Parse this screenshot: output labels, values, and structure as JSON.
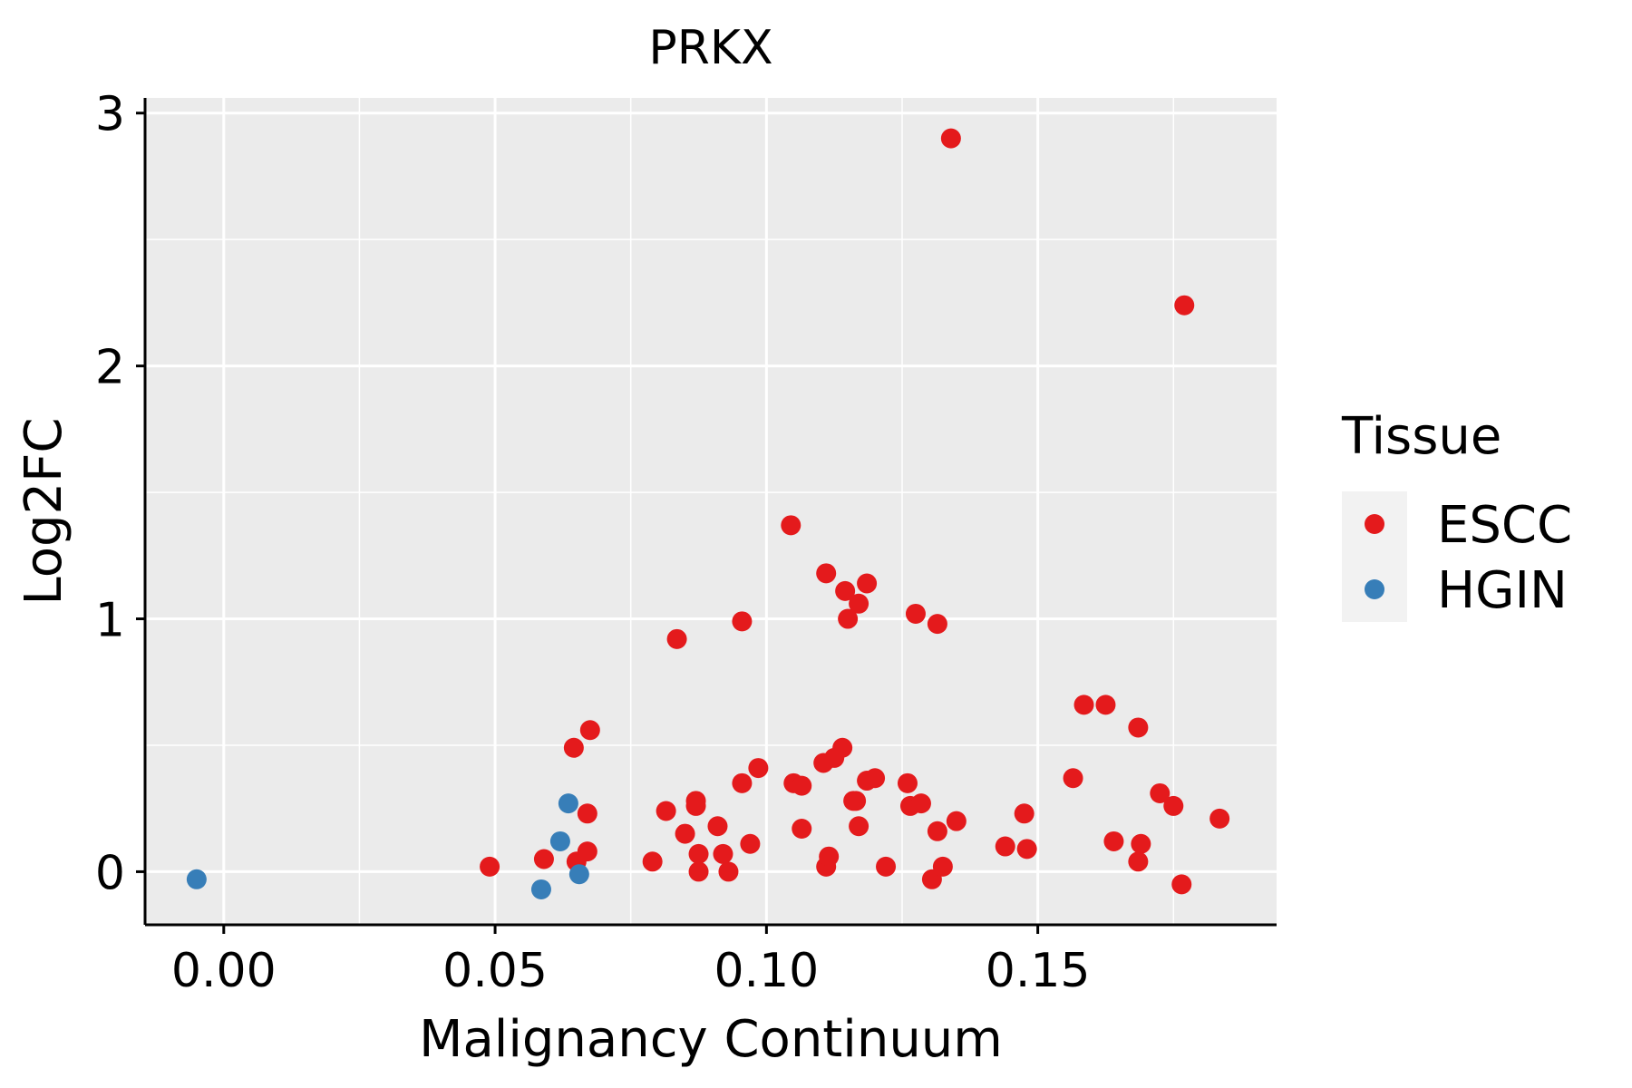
{
  "chart_data": {
    "type": "scatter",
    "title": "PRKX",
    "xlabel": "Malignancy Continuum",
    "ylabel": "Log2FC",
    "xlim": [
      -0.0145,
      0.194
    ],
    "ylim": [
      -0.21,
      3.06
    ],
    "x_ticks": [
      0.0,
      0.05,
      0.1,
      0.15
    ],
    "x_tick_labels": [
      "0.00",
      "0.05",
      "0.10",
      "0.15"
    ],
    "y_ticks": [
      0,
      1,
      2,
      3
    ],
    "y_tick_labels": [
      "0",
      "1",
      "2",
      "3"
    ],
    "grid": true,
    "legend": {
      "title": "Tissue",
      "position": "right"
    },
    "series": [
      {
        "name": "ESCC",
        "color": "#E41A1C",
        "points": [
          [
            0.049,
            0.02
          ],
          [
            0.059,
            0.05
          ],
          [
            0.065,
            0.04
          ],
          [
            0.067,
            0.08
          ],
          [
            0.067,
            0.23
          ],
          [
            0.0645,
            0.49
          ],
          [
            0.0675,
            0.56
          ],
          [
            0.079,
            0.04
          ],
          [
            0.0815,
            0.24
          ],
          [
            0.0835,
            0.92
          ],
          [
            0.085,
            0.15
          ],
          [
            0.087,
            0.28
          ],
          [
            0.087,
            0.26
          ],
          [
            0.0875,
            0.07
          ],
          [
            0.0875,
            0.0
          ],
          [
            0.091,
            0.18
          ],
          [
            0.092,
            0.07
          ],
          [
            0.093,
            0.0
          ],
          [
            0.0955,
            0.35
          ],
          [
            0.0955,
            0.99
          ],
          [
            0.097,
            0.11
          ],
          [
            0.0985,
            0.41
          ],
          [
            0.1045,
            1.37
          ],
          [
            0.105,
            0.35
          ],
          [
            0.1065,
            0.34
          ],
          [
            0.1065,
            0.17
          ],
          [
            0.1105,
            0.43
          ],
          [
            0.111,
            0.02
          ],
          [
            0.1115,
            0.06
          ],
          [
            0.111,
            1.18
          ],
          [
            0.1125,
            0.45
          ],
          [
            0.114,
            0.49
          ],
          [
            0.1145,
            1.11
          ],
          [
            0.115,
            1.0
          ],
          [
            0.116,
            0.28
          ],
          [
            0.1165,
            0.28
          ],
          [
            0.117,
            1.06
          ],
          [
            0.117,
            0.18
          ],
          [
            0.1185,
            0.36
          ],
          [
            0.1185,
            1.14
          ],
          [
            0.12,
            0.37
          ],
          [
            0.122,
            0.02
          ],
          [
            0.126,
            0.35
          ],
          [
            0.1265,
            0.26
          ],
          [
            0.1275,
            1.02
          ],
          [
            0.1285,
            0.27
          ],
          [
            0.1305,
            -0.03
          ],
          [
            0.1315,
            0.98
          ],
          [
            0.1315,
            0.16
          ],
          [
            0.1325,
            0.02
          ],
          [
            0.134,
            2.9
          ],
          [
            0.135,
            0.2
          ],
          [
            0.144,
            0.1
          ],
          [
            0.1475,
            0.23
          ],
          [
            0.148,
            0.09
          ],
          [
            0.1565,
            0.37
          ],
          [
            0.1585,
            0.66
          ],
          [
            0.1625,
            0.66
          ],
          [
            0.164,
            0.12
          ],
          [
            0.1685,
            0.57
          ],
          [
            0.1685,
            0.04
          ],
          [
            0.169,
            0.11
          ],
          [
            0.1725,
            0.31
          ],
          [
            0.175,
            0.26
          ],
          [
            0.1765,
            -0.05
          ],
          [
            0.177,
            2.24
          ],
          [
            0.1835,
            0.21
          ]
        ]
      },
      {
        "name": "HGIN",
        "color": "#377EB8",
        "points": [
          [
            -0.005,
            -0.03
          ],
          [
            0.0585,
            -0.07
          ],
          [
            0.062,
            0.12
          ],
          [
            0.0635,
            0.27
          ],
          [
            0.0655,
            -0.01
          ]
        ]
      }
    ]
  }
}
